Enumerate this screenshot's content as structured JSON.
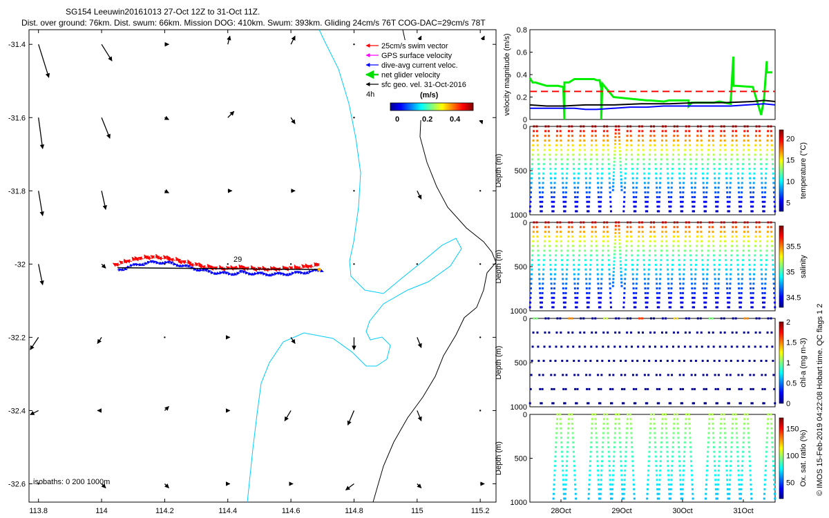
{
  "header": {
    "title_line1": "SG154 Leeuwin20161013 27-Oct 12Z to 31-Oct 11Z.",
    "title_line2": "Dist. over ground: 76km. Dist. swum: 66km. Mission DOG: 410km. Swum: 393km. Gliding 24cm/s 76T COG-DAC=29cm/s 78T"
  },
  "chart_data": [
    {
      "type": "map",
      "xlim": [
        113.77,
        115.25
      ],
      "ylim": [
        -32.65,
        -31.36
      ],
      "xticks": [
        "113.8",
        "114",
        "114.2",
        "114.4",
        "114.6",
        "114.8",
        "115",
        "115.2"
      ],
      "yticks": [
        "-31.4",
        "-31.6",
        "-31.8",
        "-32",
        "-32.2",
        "-32.4",
        "-32.6"
      ],
      "legend": {
        "items": [
          {
            "label": "25cm/s swim vector",
            "color": "#ff0000"
          },
          {
            "label": "GPS surface velocity",
            "color": "#ff00ff"
          },
          {
            "label": "dive-avg current veloc.",
            "color": "#0000ff"
          },
          {
            "label": "net glider velocity",
            "color": "#00dd00"
          },
          {
            "label": "sfc geo. vel. 31-Oct-2016",
            "color": "#000000"
          }
        ],
        "scale_label": "4h",
        "colorbar_title": "(m/s)",
        "colorbar_ticks": [
          "0",
          "0.2",
          "0.4"
        ]
      },
      "track_label": "29",
      "isobaths_note": "isobaths: 0   200  1000m",
      "vector_grid": {
        "lons": [
          113.8,
          114.0,
          114.2,
          114.4,
          114.6,
          114.8,
          115.0,
          115.2
        ],
        "lats": [
          -31.4,
          -31.6,
          -31.8,
          -32.0,
          -32.2,
          -32.4,
          -32.6
        ],
        "u": [
          [
            0.05,
            0.05,
            0.02,
            0.01,
            0.02,
            0,
            0.02,
            0.02
          ],
          [
            0.02,
            0.04,
            0.02,
            0.03,
            0.02,
            0,
            0.02,
            0.01
          ],
          [
            0.02,
            0.02,
            0.02,
            0.02,
            0.02,
            0,
            0.02,
            0
          ],
          [
            0.02,
            0.02,
            0,
            0,
            0,
            0,
            0,
            0
          ],
          [
            -0.04,
            -0.02,
            0,
            0.01,
            0.02,
            0,
            0.02,
            0
          ],
          [
            -0.04,
            -0.02,
            0.02,
            0.01,
            -0.03,
            -0.03,
            0.02,
            0
          ],
          [
            0,
            0.02,
            0.02,
            0.01,
            0.01,
            -0.04,
            0.02,
            0.02
          ]
        ],
        "v": [
          [
            -0.16,
            -0.08,
            0,
            0.04,
            0.04,
            0,
            0.04,
            0.04
          ],
          [
            -0.15,
            -0.1,
            -0.01,
            0.03,
            -0.03,
            0,
            0.04,
            -0.03
          ],
          [
            -0.12,
            -0.09,
            -0.01,
            0,
            0,
            0,
            -0.04,
            0
          ],
          [
            -0.1,
            -0.02,
            0,
            0,
            0,
            0,
            0,
            0
          ],
          [
            -0.06,
            -0.03,
            0,
            0,
            -0.03,
            -0.06,
            -0.05,
            0
          ],
          [
            -0.02,
            0,
            0.02,
            0,
            -0.05,
            -0.07,
            -0.05,
            0
          ],
          [
            0,
            -0.02,
            -0.02,
            0,
            0,
            -0.03,
            -0.02,
            0
          ]
        ]
      }
    },
    {
      "type": "line",
      "ylabel": "velocity magnitude (m/s)",
      "ylim": [
        0,
        0.8
      ],
      "yticks": [
        "0",
        "0.2",
        "0.4",
        "0.6",
        "0.8"
      ],
      "xlim": [
        0,
        4.4
      ],
      "series": [
        {
          "name": "net glider velocity",
          "color": "#00ee00",
          "x": [
            0,
            0.05,
            0.1,
            0.3,
            0.5,
            0.6,
            0.6,
            0.62,
            0.62,
            0.7,
            0.8,
            1.15,
            1.2,
            1.25,
            1.28,
            1.28,
            1.3,
            1.5,
            2.1,
            2.15,
            2.4,
            2.5,
            2.8,
            2.85,
            2.85,
            2.9,
            3.3,
            3.4,
            3.6,
            3.65,
            3.65,
            3.7,
            4.0,
            4.15,
            4.2,
            4.25,
            4.25,
            4.35
          ],
          "y": [
            0.37,
            0.33,
            0.33,
            0.3,
            0.3,
            0.29,
            0.29,
            0.0,
            0.33,
            0.33,
            0.36,
            0.36,
            0.35,
            0.35,
            0.28,
            0.0,
            0.32,
            0.2,
            0.17,
            0.17,
            0.16,
            0.17,
            0.17,
            0.17,
            0.12,
            0.15,
            0.15,
            0.16,
            0.14,
            0.56,
            0.3,
            0.3,
            0.29,
            0.04,
            0.18,
            0.52,
            0.42,
            0.42
          ]
        },
        {
          "name": "dive-avg current",
          "color": "#0000ff",
          "x": [
            0,
            0.2,
            0.5,
            0.8,
            1.0,
            1.2,
            1.5,
            1.8,
            2.1,
            2.4,
            2.7,
            3.0,
            3.3,
            3.6,
            3.9,
            4.2,
            4.4
          ],
          "y": [
            0.1,
            0.1,
            0.1,
            0.1,
            0.09,
            0.09,
            0.1,
            0.11,
            0.11,
            0.12,
            0.12,
            0.12,
            0.12,
            0.12,
            0.13,
            0.14,
            0.13
          ]
        },
        {
          "name": "sfc geo. vel.",
          "color": "#000000",
          "x": [
            0,
            0.3,
            0.6,
            1.0,
            1.5,
            2.0,
            2.5,
            3.0,
            3.5,
            4.0,
            4.2,
            4.4
          ],
          "y": [
            0.13,
            0.12,
            0.12,
            0.13,
            0.13,
            0.14,
            0.14,
            0.15,
            0.15,
            0.16,
            0.17,
            0.16
          ]
        },
        {
          "name": "25cm/s swim",
          "color": "#ff0000",
          "dashed": true,
          "x": [
            0,
            4.4
          ],
          "y": [
            0.25,
            0.25
          ]
        }
      ]
    },
    {
      "type": "scatter",
      "ylabel": "Depth (m)",
      "clabel": "temperature (°C)",
      "yticks": [
        "0",
        "500",
        "1000"
      ],
      "cticks": [
        "5",
        "10",
        "15",
        "20"
      ],
      "clim": [
        3,
        22
      ]
    },
    {
      "type": "scatter",
      "ylabel": "Depth (m)",
      "clabel": "salinity",
      "yticks": [
        "0",
        "500",
        "1000"
      ],
      "cticks": [
        "34.5",
        "35",
        "35.5"
      ],
      "clim": [
        34.3,
        35.9
      ]
    },
    {
      "type": "scatter",
      "ylabel": "Depth (m)",
      "clabel": "chl-a (mg m-3)",
      "yticks": [
        "0",
        "500",
        "1000"
      ],
      "cticks": [
        "0",
        "0.5",
        "1",
        "1.5",
        "2"
      ],
      "clim": [
        0,
        2
      ]
    },
    {
      "type": "scatter",
      "ylabel": "Depth (m)",
      "clabel": "Ox. sat. ratio (%)",
      "yticks": [
        "0",
        "500",
        "1000"
      ],
      "cticks": [
        "50",
        "100",
        "150"
      ],
      "clim": [
        20,
        170
      ],
      "xticks": [
        "28Oct",
        "29Oct",
        "30Oct",
        "31Oct"
      ]
    }
  ],
  "side_note": "© IMOS 15-Feb-2019 04:22:08 Hobart time. QC flags 1  2"
}
